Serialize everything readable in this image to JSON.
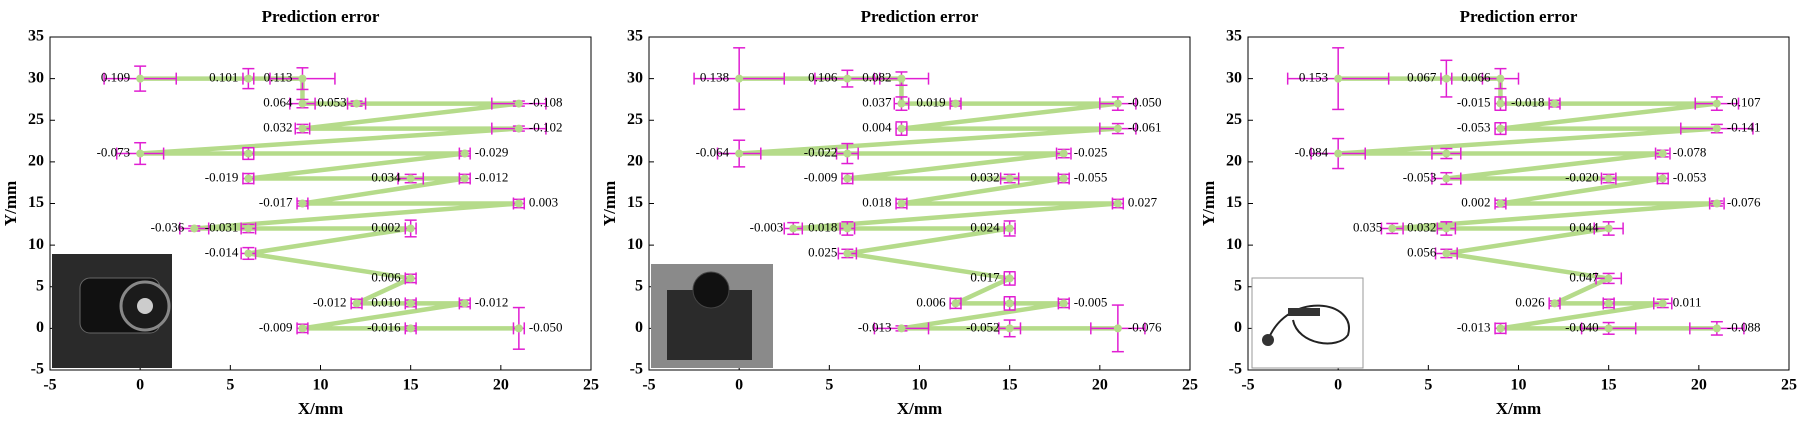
{
  "chart_data": [
    {
      "type": "line",
      "title": "Prediction error",
      "x_label": "X/mm",
      "y_label": "Y/mm",
      "x": [
        0,
        6,
        9,
        9,
        12,
        21,
        9,
        21,
        0,
        6,
        18,
        6,
        15,
        18,
        9,
        21,
        3,
        6,
        15,
        6,
        15,
        12,
        15,
        18,
        9,
        15,
        21
      ],
      "y": [
        30,
        30,
        30,
        27,
        27,
        27,
        24,
        24,
        21,
        21,
        21,
        18,
        18,
        18,
        15,
        15,
        12,
        12,
        12,
        9,
        6,
        3,
        3,
        3,
        0,
        0,
        0
      ],
      "xerr": [
        2,
        0.3,
        1.8,
        0.7,
        0.5,
        1.5,
        0.4,
        1.5,
        1.3,
        0.3,
        0.3,
        0.3,
        0.7,
        0.3,
        0.3,
        0.3,
        0.8,
        0.4,
        0.3,
        0.4,
        0.3,
        0.3,
        0.3,
        0.3,
        0.3,
        0.3,
        0.3
      ],
      "yerr": [
        1.5,
        1.2,
        1.3,
        0.5,
        0.3,
        0.3,
        0.5,
        0.3,
        1.3,
        0.7,
        0.3,
        0.6,
        0.5,
        0.5,
        0.3,
        0.5,
        0.3,
        0.5,
        1,
        0.7,
        0.5,
        0.5,
        0.4,
        0.4,
        0.5,
        0.3,
        2.5
      ],
      "point_labels": [
        "0.109",
        "0.101",
        "0.113",
        "0.064",
        "0.053",
        "-0.108",
        "0.032",
        "-0.102",
        "-0.073",
        null,
        "-0.029",
        "-0.019",
        "0.034",
        "-0.012",
        "-0.017",
        "0.003",
        "-0.036",
        "-0.031",
        "0.002",
        "-0.014",
        "0.006",
        "-0.012",
        "0.010",
        "-0.012",
        "-0.009",
        "-0.016",
        "-0.050"
      ],
      "color": "#b5db8a",
      "error_color": "#e01ed2",
      "xlim": [
        -5,
        25
      ],
      "ylim": [
        -5,
        35
      ],
      "xticks": [
        -5,
        0,
        5,
        10,
        15,
        20,
        25
      ],
      "yticks": [
        -5,
        0,
        5,
        10,
        15,
        20,
        25,
        30,
        35
      ]
    },
    {
      "type": "line",
      "title": "Prediction error",
      "x_label": "X/mm",
      "y_label": "Y/mm",
      "x": [
        0,
        6,
        9,
        9,
        12,
        21,
        9,
        21,
        0,
        6,
        18,
        6,
        15,
        18,
        9,
        21,
        3,
        6,
        15,
        6,
        15,
        12,
        15,
        18,
        9,
        15,
        21
      ],
      "y": [
        30,
        30,
        30,
        27,
        27,
        27,
        24,
        24,
        21,
        21,
        21,
        18,
        18,
        18,
        15,
        15,
        12,
        12,
        12,
        9,
        6,
        3,
        3,
        3,
        0,
        0,
        0
      ],
      "xerr": [
        2.5,
        1.8,
        1.5,
        0.4,
        0.3,
        1,
        0.3,
        1,
        1.2,
        0.6,
        0.4,
        0.3,
        0.5,
        0.3,
        0.3,
        0.3,
        0.5,
        0.4,
        0.3,
        0.5,
        0.3,
        0.3,
        0.3,
        0.3,
        1.5,
        0.6,
        1.5
      ],
      "yerr": [
        3.7,
        1,
        0.8,
        0.8,
        0.3,
        0.8,
        0.8,
        0.6,
        1.6,
        1.2,
        0.5,
        0.6,
        0.5,
        0.5,
        0.5,
        0.5,
        0.7,
        0.8,
        0.9,
        0.5,
        0.8,
        0.6,
        0.8,
        0.5,
        0.3,
        1,
        2.8
      ],
      "point_labels": [
        "0.138",
        "0.106",
        "0.082",
        "0.037",
        "0.019",
        "-0.050",
        "0.004",
        "-0.061",
        "-0.064",
        "-0.022",
        "-0.025",
        "-0.009",
        "0.032",
        "-0.055",
        "0.018",
        "0.027",
        "-0.003",
        "0.018",
        "0.024",
        "0.025",
        "0.017",
        "0.006",
        null,
        "-0.005",
        "-0.013",
        "-0.052",
        "-0.076"
      ],
      "color": "#b5db8a",
      "error_color": "#e01ed2",
      "xlim": [
        -5,
        25
      ],
      "ylim": [
        -5,
        35
      ],
      "xticks": [
        -5,
        0,
        5,
        10,
        15,
        20,
        25
      ],
      "yticks": [
        -5,
        0,
        5,
        10,
        15,
        20,
        25,
        30,
        35
      ]
    },
    {
      "type": "line",
      "title": "Prediction error",
      "x_label": "X/mm",
      "y_label": "Y/mm",
      "x": [
        0,
        6,
        9,
        9,
        12,
        21,
        9,
        21,
        0,
        6,
        18,
        6,
        15,
        18,
        9,
        21,
        3,
        6,
        15,
        6,
        15,
        12,
        15,
        18,
        9,
        15,
        21
      ],
      "y": [
        30,
        30,
        30,
        27,
        27,
        27,
        24,
        24,
        21,
        21,
        21,
        18,
        18,
        18,
        15,
        15,
        12,
        12,
        12,
        9,
        6,
        3,
        3,
        3,
        0,
        0,
        0
      ],
      "xerr": [
        2.8,
        0.3,
        1,
        0.3,
        0.3,
        1.2,
        0.3,
        2,
        1.5,
        0.8,
        0.4,
        0.8,
        0.4,
        0.3,
        0.3,
        0.4,
        0.6,
        0.5,
        0.8,
        0.6,
        0.7,
        0.3,
        0.3,
        0.5,
        0.3,
        1.5,
        1.5
      ],
      "yerr": [
        3.7,
        2.2,
        1.2,
        0.8,
        0.4,
        0.8,
        0.7,
        0.5,
        1.8,
        0.6,
        0.4,
        0.7,
        0.5,
        0.6,
        0.4,
        0.3,
        0.6,
        0.8,
        0.8,
        0.5,
        0.6,
        0.3,
        0.5,
        0.5,
        0.6,
        0.7,
        0.8
      ],
      "point_labels": [
        "0.153",
        "0.067",
        "0.066",
        "-0.015",
        "-0.018",
        "-0.107",
        "-0.053",
        "-0.141",
        "-0.084",
        null,
        "-0.078",
        "-0.053",
        "-0.020",
        "-0.053",
        "0.002",
        "-0.076",
        "0.035",
        "0.032",
        "0.044",
        "0.056",
        "0.047",
        "0.026",
        null,
        "0.011",
        "-0.013",
        "-0.040",
        "-0.088"
      ],
      "color": "#b5db8a",
      "error_color": "#e01ed2",
      "xlim": [
        -5,
        25
      ],
      "ylim": [
        -5,
        35
      ],
      "xticks": [
        -5,
        0,
        5,
        10,
        15,
        20,
        25
      ],
      "yticks": [
        -5,
        0,
        5,
        10,
        15,
        20,
        25,
        30,
        35
      ]
    }
  ]
}
